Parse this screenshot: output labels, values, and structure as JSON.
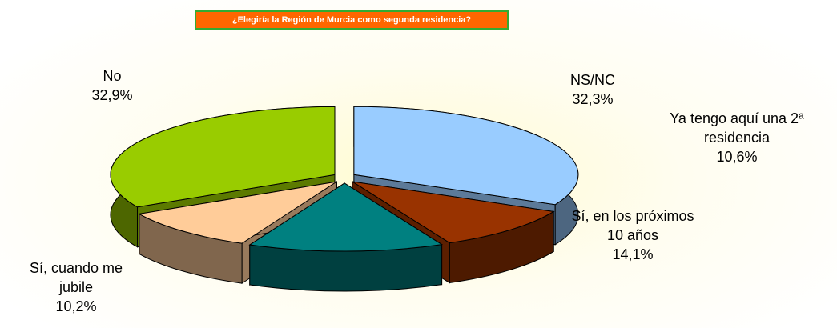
{
  "chart_data": {
    "type": "pie3d",
    "title": "¿Elegiría la Región de Murcia como segunda residencia?",
    "categories": [
      "NS/NC",
      "Ya tengo aquí una 2ª residencia",
      "Sí, en los próximos 10 años",
      "Sí, cuando me jubile",
      "No"
    ],
    "values": [
      32.3,
      10.6,
      14.1,
      10.2,
      32.9
    ],
    "value_labels": [
      "32,3%",
      "10,6%",
      "14,1%",
      "10,2%",
      "32,9%"
    ],
    "colors": [
      "#99ccff",
      "#993300",
      "#008080",
      "#ffcc99",
      "#99cc00"
    ]
  }
}
